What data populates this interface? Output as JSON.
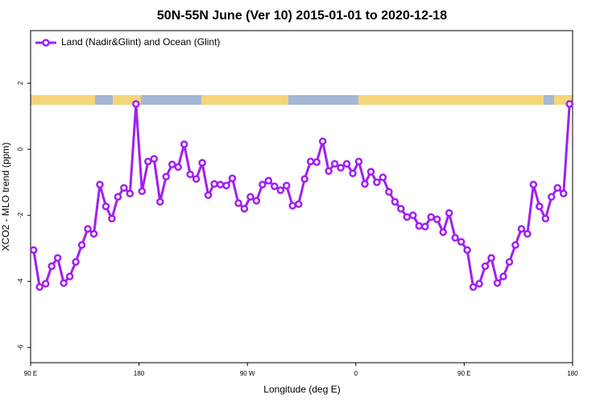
{
  "chart_data": {
    "type": "line",
    "title": "50N-55N June (Ver 10)   2015-01-01 to 2020-12-18",
    "x_label": "Longitude (deg E)",
    "y_label": "XCO2 - MLO trend (ppm)",
    "legend": "top-left",
    "x": [
      92.5,
      97.5,
      102.5,
      107.5,
      112.5,
      117.5,
      122.5,
      127.5,
      132.5,
      137.5,
      142.5,
      147.5,
      152.5,
      157.5,
      162.5,
      167.5,
      172.5,
      177.5,
      182.5,
      187.5,
      192.5,
      197.5,
      202.5,
      207.5,
      212.5,
      217.5,
      222.5,
      227.5,
      232.5,
      237.5,
      242.5,
      247.5,
      252.5,
      257.5,
      262.5,
      267.5,
      272.5,
      277.5,
      282.5,
      287.5,
      292.5,
      297.5,
      302.5,
      307.5,
      312.5,
      317.5,
      322.5,
      327.5,
      332.5,
      337.5,
      342.5,
      347.5,
      352.5,
      357.5,
      362.5,
      367.5,
      372.5,
      377.5,
      382.5,
      387.5,
      392.5,
      397.5,
      402.5,
      407.5,
      412.5,
      417.5,
      422.5,
      427.5,
      432.5,
      437.5,
      442.5,
      447.5,
      452.5,
      457.5,
      462.5,
      467.5,
      472.5,
      477.5,
      482.5,
      487.5,
      492.5,
      497.5,
      502.5,
      507.5,
      512.5,
      517.5,
      522.5,
      527.5,
      532.5,
      537.5
    ],
    "series": [
      {
        "name": "Land (Nadir&Glint) and Ocean (Glint)",
        "color": "#a020f0",
        "values": [
          -3.05,
          -4.17,
          -4.07,
          -3.54,
          -3.29,
          -4.05,
          -3.85,
          -3.41,
          -2.9,
          -2.41,
          -2.56,
          -1.07,
          -1.73,
          -2.1,
          -1.44,
          -1.17,
          -1.34,
          1.37,
          -1.27,
          -0.37,
          -0.29,
          -1.59,
          -0.83,
          -0.46,
          -0.54,
          0.15,
          -0.76,
          -0.9,
          -0.41,
          -1.39,
          -1.05,
          -1.07,
          -1.1,
          -0.88,
          -1.63,
          -1.8,
          -1.44,
          -1.56,
          -1.07,
          -0.95,
          -1.12,
          -1.24,
          -1.1,
          -1.71,
          -1.66,
          -0.9,
          -0.37,
          -0.39,
          0.24,
          -0.66,
          -0.44,
          -0.56,
          -0.44,
          -0.73,
          -0.37,
          -1.05,
          -0.68,
          -1.0,
          -0.85,
          -1.29,
          -1.59,
          -1.8,
          -2.05,
          -2.0,
          -2.32,
          -2.34,
          -2.05,
          -2.12,
          -2.51,
          -1.93,
          -2.68,
          -2.8,
          -3.05,
          -4.17,
          -4.07,
          -3.54,
          -3.29,
          -4.05,
          -3.85,
          -3.41,
          -2.9,
          -2.41,
          -2.56,
          -1.07,
          -1.73,
          -2.1,
          -1.44,
          -1.17,
          -1.34,
          1.37
        ]
      }
    ],
    "xlim": [
      90,
      540
    ],
    "xticks": [
      {
        "value": 90,
        "label": "90 E"
      },
      {
        "value": 180,
        "label": "180"
      },
      {
        "value": 270,
        "label": "90 W"
      },
      {
        "value": 360,
        "label": "0"
      },
      {
        "value": 450,
        "label": "90 E"
      },
      {
        "value": 540,
        "label": "180"
      }
    ],
    "ylim": [
      -6.46,
      3.59
    ],
    "yticks": [
      -6,
      -4,
      -2,
      0,
      2
    ]
  }
}
